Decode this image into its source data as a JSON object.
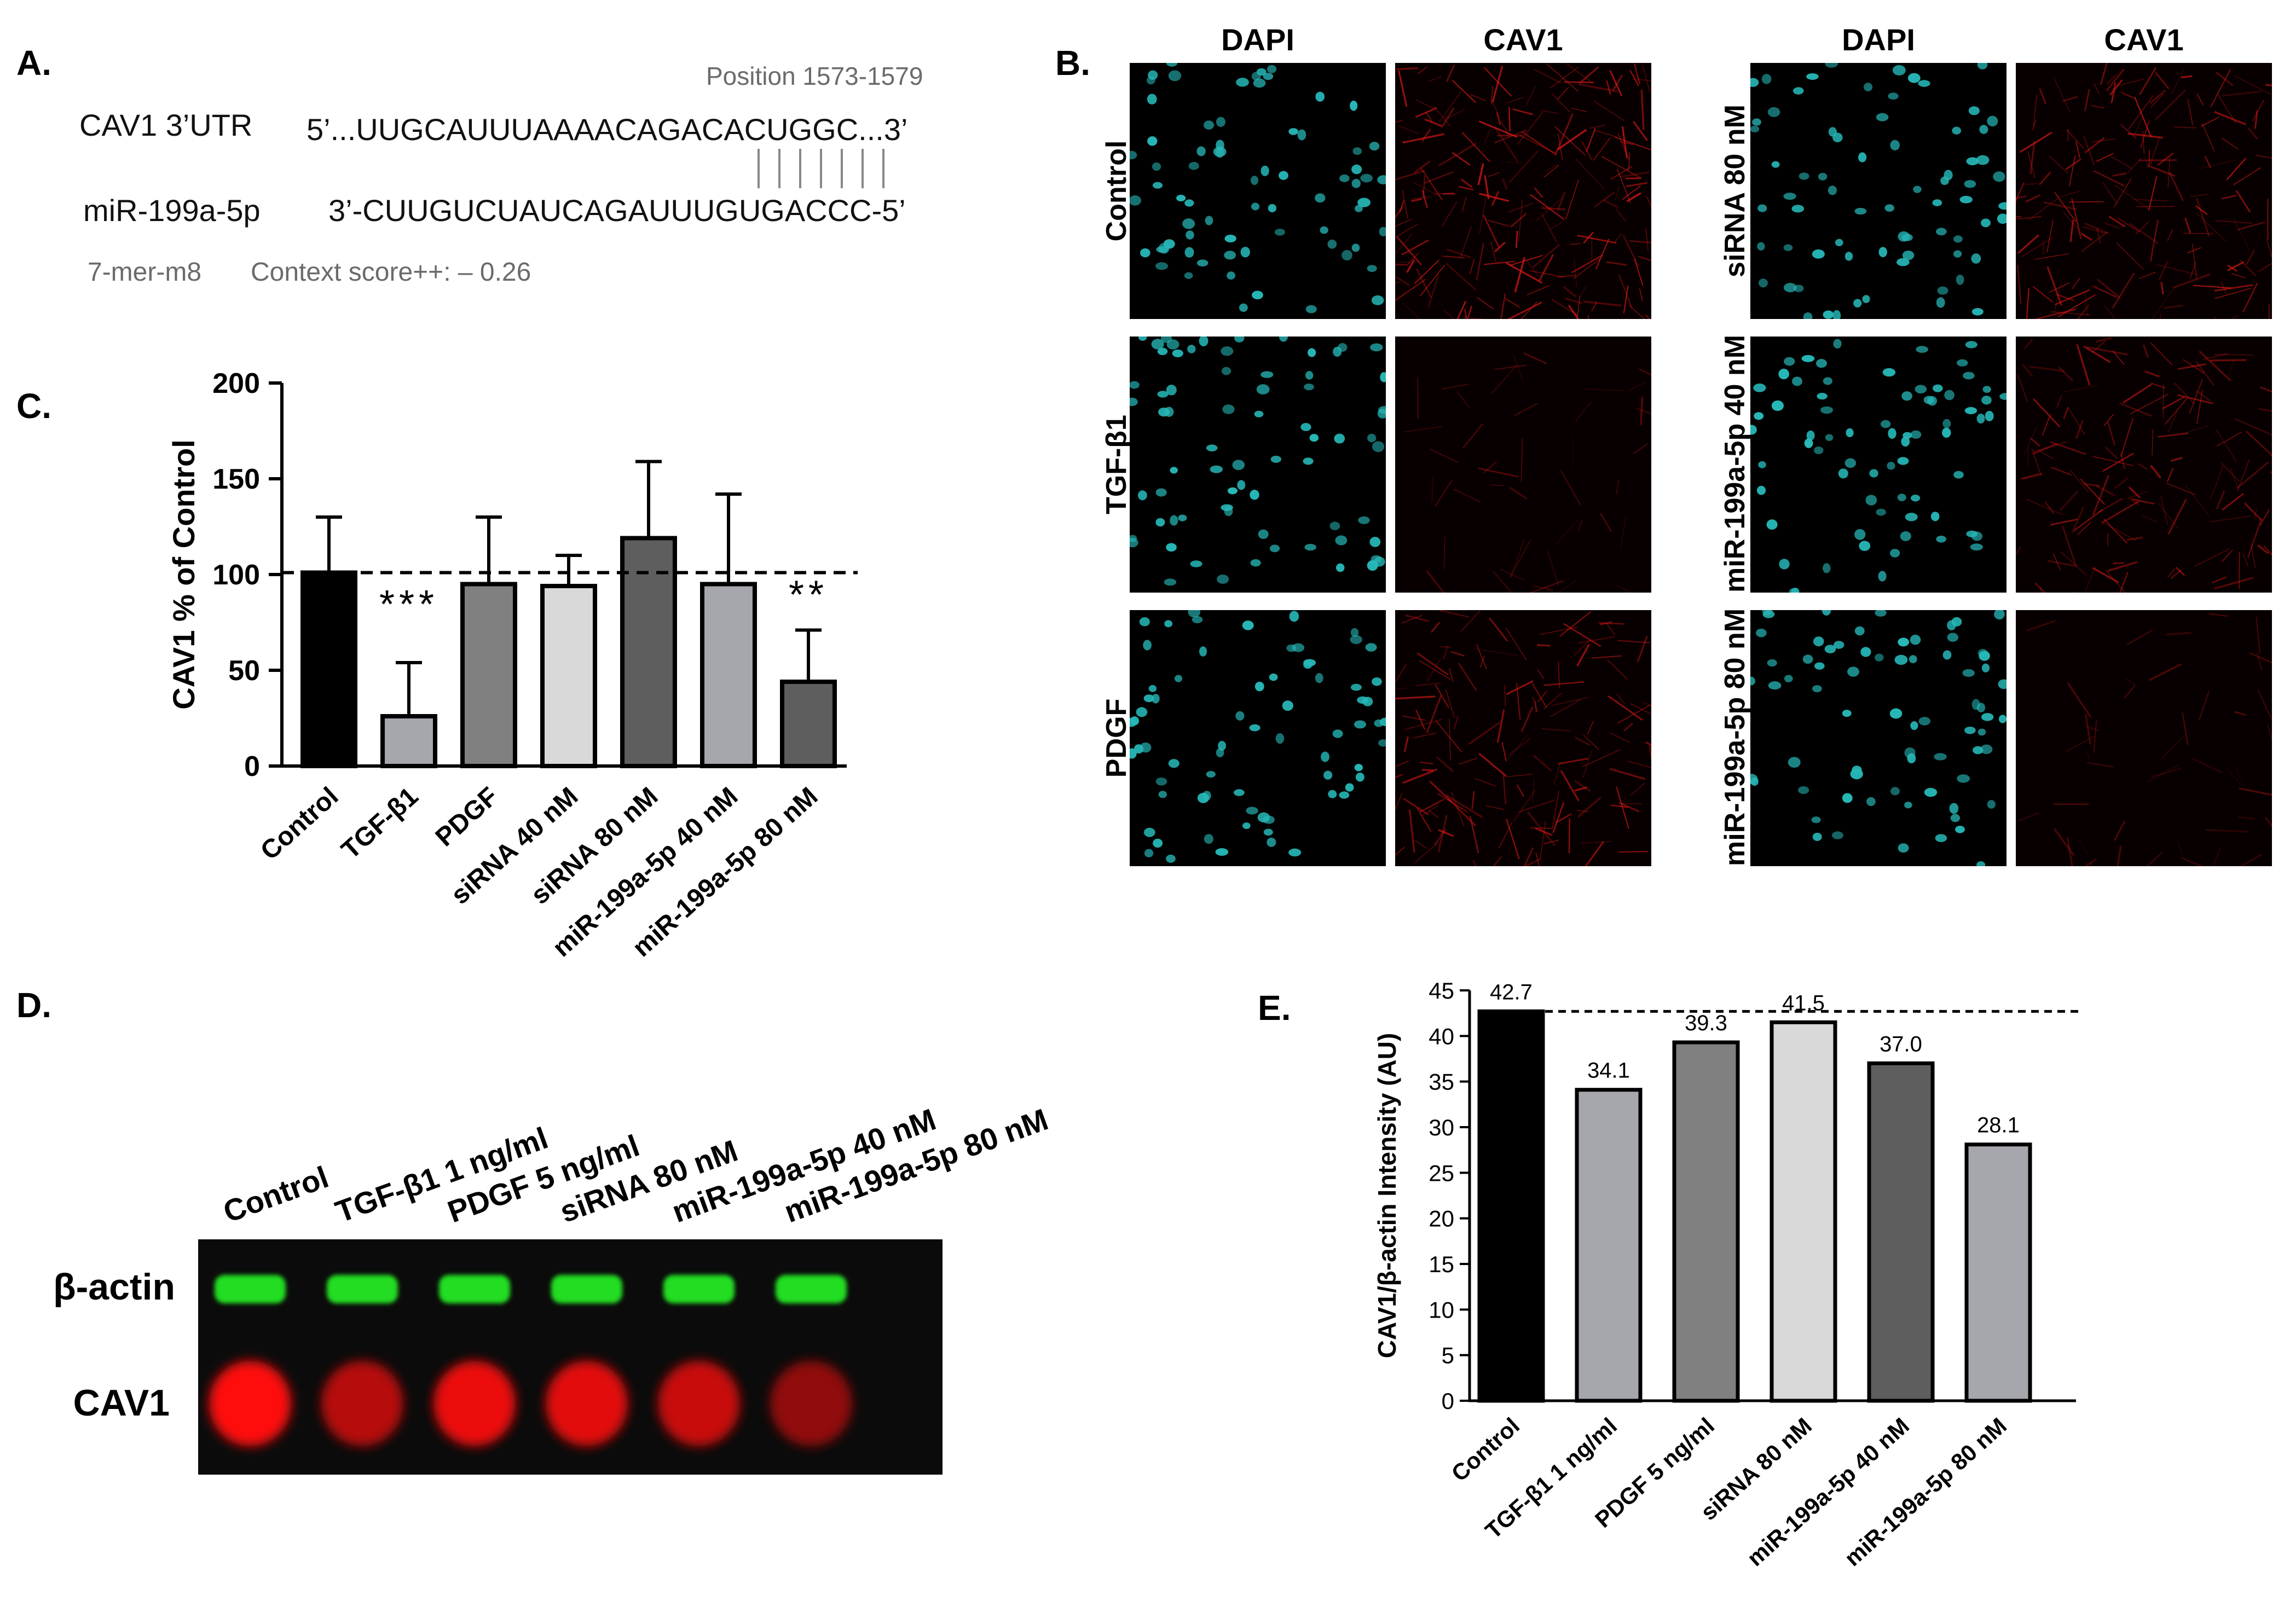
{
  "panels": {
    "a": "A.",
    "b": "B.",
    "c": "C.",
    "d": "D.",
    "e": "E."
  },
  "panel_a": {
    "position_label": "Position 1573-1579",
    "utr_label": "CAV1 3’UTR",
    "utr_seq": "5’...UUGCAUUUAAAACAGACACUGGC...3’",
    "mir_label": "miR-199a-5p",
    "mir_seq": "3’-CUUGUCUAUCAGAUUUGUGACCC-5’",
    "site_type": "7-mer-m8",
    "context_score": "Context score++: – 0.26"
  },
  "panel_b": {
    "col_left": [
      "DAPI",
      "CAV1"
    ],
    "col_right": [
      "DAPI",
      "CAV1"
    ],
    "rows_left": [
      "Control",
      "TGF-β1",
      "PDGF"
    ],
    "rows_right": [
      "siRNA 80 nM",
      "miR-199a-5p 40 nM",
      "miR-199a-5p 80 nM"
    ],
    "cav1_intensity_left": [
      0.85,
      0.12,
      0.6
    ],
    "cav1_intensity_right": [
      0.7,
      0.55,
      0.12
    ],
    "dapi_color": "#27b8b8",
    "cav1_color": "#e01818"
  },
  "panel_d": {
    "lanes": [
      "Control",
      "TGF-β1 1 ng/ml",
      "PDGF 5 ng/ml",
      "siRNA 80 nM",
      "miR-199a-5p 40 nM",
      "miR-199a-5p 80 nM"
    ],
    "row_labels": [
      "β-actin",
      "CAV1"
    ],
    "cav1_band_intensity": [
      1.0,
      0.6,
      0.9,
      0.85,
      0.7,
      0.4
    ],
    "actin_color": "#22dd22",
    "cav1_color": "#ff1010"
  },
  "chart_data": [
    {
      "id": "C",
      "type": "bar",
      "categories": [
        "Control",
        "TGF-β1",
        "PDGF",
        "siRNA 40 nM",
        "siRNA 80 nM",
        "miR-199a-5p 40 nM",
        "miR-199a-5p 80 nM"
      ],
      "values": [
        101,
        26,
        95,
        94,
        119,
        95,
        44
      ],
      "error_upper": [
        130,
        54,
        130,
        110,
        159,
        142,
        71
      ],
      "colors": [
        "#000000",
        "#a6a6ad",
        "#808080",
        "#d9d9d9",
        "#5e5e5e",
        "#a6a6ad",
        "#5e5e5e"
      ],
      "annotations": [
        "",
        "***",
        "",
        "",
        "",
        "",
        "**"
      ],
      "reference_line": 101,
      "ylabel": "CAV1 % of Control",
      "ylim": [
        0,
        200
      ],
      "yticks": [
        0,
        50,
        100,
        150,
        200
      ]
    },
    {
      "id": "E",
      "type": "bar",
      "categories": [
        "Control",
        "TGF-β1 1 ng/ml",
        "PDGF 5 ng/ml",
        "siRNA 80 nM",
        "miR-199a-5p 40 nM",
        "miR-199a-5p 80 nM"
      ],
      "values": [
        42.7,
        34.1,
        39.3,
        41.5,
        37.0,
        28.1
      ],
      "data_labels": [
        "42.7",
        "34.1",
        "39.3",
        "41.5",
        "37.0",
        "28.1"
      ],
      "colors": [
        "#000000",
        "#a6a6ad",
        "#808080",
        "#d9d9d9",
        "#5e5e5e",
        "#a6a6ad"
      ],
      "reference_line": 42.7,
      "ylabel": "CAV1/β-actin Intensity (AU)",
      "ylim": [
        0,
        45
      ],
      "yticks": [
        0,
        5,
        10,
        15,
        20,
        25,
        30,
        35,
        40,
        45
      ]
    }
  ]
}
